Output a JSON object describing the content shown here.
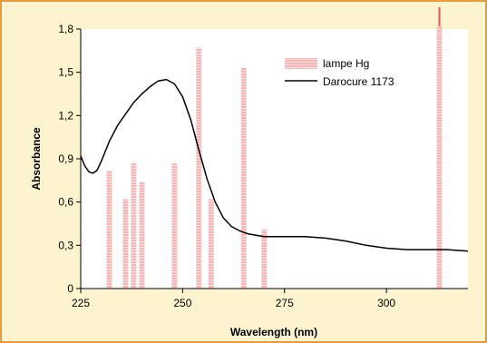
{
  "colors": {
    "background": "#fdf3cf",
    "border": "#e89a3c",
    "plot_area": "#ffffff",
    "bar": "#f7b7b7",
    "bar_stripe": "#ffffff",
    "lamp_legend_line": "#e05555",
    "curve": "#000000"
  },
  "chart_data": {
    "type": "bar+line",
    "xlabel": "Wavelength (nm)",
    "ylabel": "Absorbance",
    "xlim": [
      225,
      320
    ],
    "ylim": [
      0,
      1.8
    ],
    "x_ticks": [
      225,
      250,
      275,
      300
    ],
    "x_tick_labels": [
      "225",
      "250",
      "275",
      "300"
    ],
    "y_ticks": [
      0,
      0.3,
      0.6,
      0.9,
      1.2,
      1.5,
      1.8
    ],
    "y_tick_labels": [
      "0",
      "0,3",
      "0,6",
      "0,9",
      "1,2",
      "1,5",
      "1,8"
    ],
    "grid": false,
    "legend_position": "top-right",
    "legend": [
      {
        "name": "lampe Hg",
        "style": "bar"
      },
      {
        "name": "Darocure 1173",
        "style": "line"
      }
    ],
    "bars": {
      "name": "lampe Hg",
      "x": [
        232,
        236,
        238,
        240,
        248,
        254,
        257,
        265,
        270,
        313
      ],
      "values": [
        0.82,
        0.62,
        0.87,
        0.74,
        0.87,
        1.67,
        0.62,
        1.53,
        0.41,
        1.82
      ]
    },
    "line": {
      "name": "Darocure 1173",
      "x": [
        225,
        226,
        227,
        228,
        229,
        230,
        232,
        234,
        236,
        238,
        240,
        242,
        244,
        246,
        248,
        250,
        252,
        254,
        256,
        258,
        260,
        262,
        264,
        266,
        268,
        270,
        272,
        275,
        280,
        285,
        290,
        295,
        300,
        305,
        310,
        315,
        320
      ],
      "values": [
        0.92,
        0.85,
        0.81,
        0.8,
        0.82,
        0.88,
        1.02,
        1.13,
        1.21,
        1.29,
        1.35,
        1.4,
        1.44,
        1.45,
        1.42,
        1.33,
        1.17,
        0.96,
        0.76,
        0.6,
        0.49,
        0.43,
        0.4,
        0.38,
        0.37,
        0.36,
        0.36,
        0.36,
        0.36,
        0.35,
        0.33,
        0.3,
        0.28,
        0.27,
        0.27,
        0.27,
        0.26
      ]
    }
  }
}
